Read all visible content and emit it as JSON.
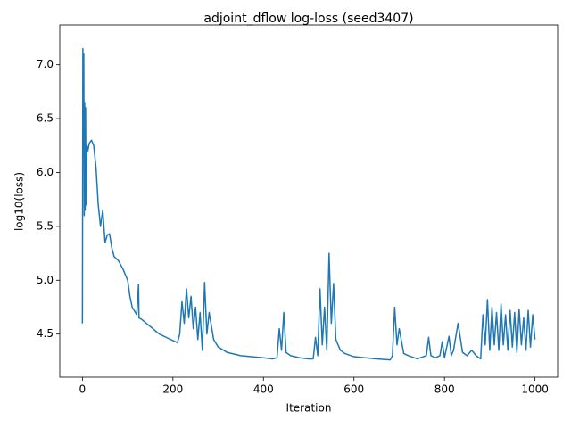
{
  "chart_data": {
    "type": "line",
    "title": "adjoint_dflow log-loss (seed3407)",
    "x_label": "Iteration",
    "y_label": "log10(loss)",
    "x": [
      0,
      1,
      2,
      3,
      4,
      5,
      6,
      7,
      8,
      10,
      12,
      15,
      20,
      25,
      30,
      35,
      40,
      45,
      50,
      55,
      60,
      65,
      70,
      80,
      90,
      100,
      105,
      110,
      120,
      124,
      125,
      130,
      150,
      170,
      190,
      210,
      215,
      220,
      225,
      230,
      235,
      240,
      245,
      250,
      255,
      260,
      265,
      270,
      275,
      280,
      290,
      300,
      320,
      350,
      400,
      420,
      430,
      435,
      440,
      445,
      450,
      460,
      480,
      500,
      510,
      515,
      520,
      525,
      530,
      535,
      540,
      545,
      550,
      555,
      560,
      570,
      580,
      600,
      650,
      680,
      685,
      690,
      695,
      700,
      710,
      720,
      740,
      760,
      765,
      770,
      780,
      790,
      795,
      800,
      810,
      815,
      820,
      830,
      840,
      850,
      860,
      870,
      880,
      885,
      890,
      895,
      900,
      905,
      910,
      915,
      920,
      925,
      930,
      935,
      940,
      945,
      950,
      955,
      960,
      965,
      970,
      975,
      980,
      985,
      990,
      995,
      1000
    ],
    "series": [
      {
        "name": "log-loss",
        "color": "#1f77b4",
        "values": [
          4.6,
          7.15,
          6.2,
          7.1,
          5.6,
          6.65,
          5.65,
          6.6,
          5.7,
          6.25,
          6.2,
          6.27,
          6.3,
          6.25,
          6.05,
          5.7,
          5.5,
          5.65,
          5.35,
          5.42,
          5.43,
          5.3,
          5.22,
          5.18,
          5.1,
          5.0,
          4.85,
          4.75,
          4.68,
          4.96,
          4.65,
          4.64,
          4.57,
          4.5,
          4.46,
          4.42,
          4.5,
          4.8,
          4.6,
          4.92,
          4.65,
          4.85,
          4.55,
          4.75,
          4.45,
          4.7,
          4.35,
          4.98,
          4.5,
          4.7,
          4.45,
          4.38,
          4.33,
          4.3,
          4.28,
          4.27,
          4.28,
          4.55,
          4.35,
          4.7,
          4.33,
          4.3,
          4.28,
          4.27,
          4.27,
          4.47,
          4.3,
          4.92,
          4.4,
          4.75,
          4.35,
          5.25,
          4.6,
          4.97,
          4.45,
          4.35,
          4.32,
          4.29,
          4.27,
          4.26,
          4.3,
          4.75,
          4.4,
          4.55,
          4.32,
          4.3,
          4.27,
          4.3,
          4.47,
          4.3,
          4.28,
          4.3,
          4.43,
          4.28,
          4.48,
          4.3,
          4.35,
          4.6,
          4.33,
          4.3,
          4.35,
          4.3,
          4.27,
          4.68,
          4.4,
          4.82,
          4.35,
          4.75,
          4.4,
          4.7,
          4.35,
          4.78,
          4.4,
          4.68,
          4.35,
          4.72,
          4.38,
          4.7,
          4.33,
          4.73,
          4.4,
          4.65,
          4.35,
          4.72,
          4.38,
          4.68,
          4.45
        ]
      }
    ],
    "xlim": [
      -50,
      1050
    ],
    "xticks": [
      0,
      200,
      400,
      600,
      800,
      1000
    ],
    "ylim": [
      4.1,
      7.37
    ],
    "yticks": [
      4.5,
      {
        "value": 5,
        "label": "5.0"
      },
      5.5,
      {
        "value": 6,
        "label": "6.0"
      },
      6.5,
      {
        "value": 7,
        "label": "7.0"
      }
    ],
    "grid": false
  }
}
